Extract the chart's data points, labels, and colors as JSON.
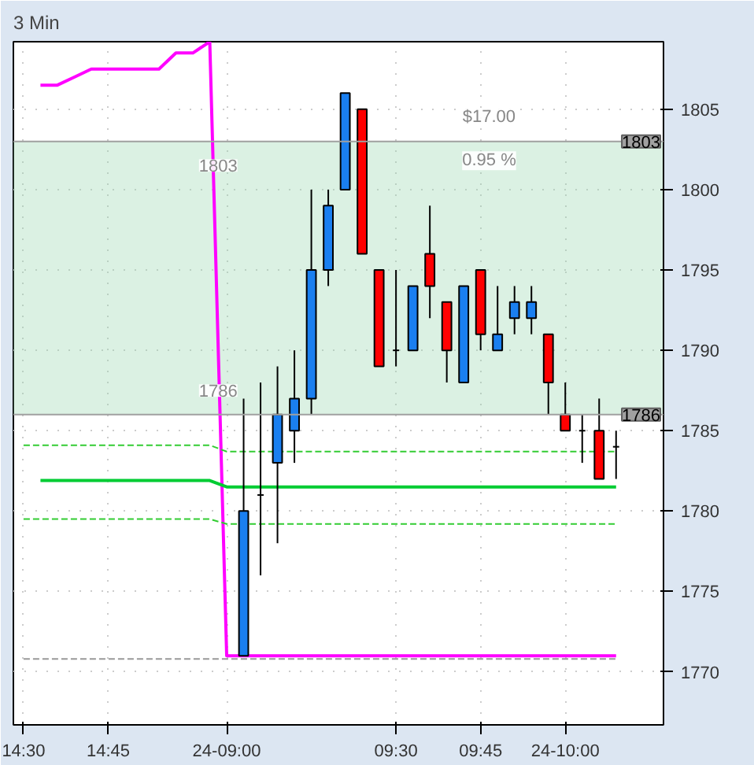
{
  "chart_data": {
    "type": "candlestick",
    "title": "3 Min",
    "categories": [
      "14:30",
      null,
      null,
      null,
      null,
      "14:45",
      null,
      null,
      null,
      null,
      null,
      null,
      "24-09:00",
      null,
      null,
      null,
      null,
      null,
      null,
      null,
      null,
      null,
      "09:30",
      null,
      null,
      null,
      null,
      "09:45",
      null,
      null,
      null,
      null,
      "24-10:00",
      null,
      null,
      null
    ],
    "ohlc": [
      null,
      null,
      null,
      null,
      null,
      null,
      null,
      null,
      null,
      null,
      null,
      null,
      null,
      [
        1771,
        1787,
        1771,
        1780
      ],
      [
        1781,
        1788,
        1776,
        1781
      ],
      [
        1783,
        1789,
        1778,
        1786
      ],
      [
        1785,
        1790,
        1783,
        1787
      ],
      [
        1787,
        1800,
        1786,
        1795
      ],
      [
        1795,
        1800,
        1794,
        1799
      ],
      [
        1800,
        1806,
        1800,
        1806
      ],
      [
        1805,
        1805,
        1796,
        1796
      ],
      [
        1795,
        1795,
        1789,
        1789
      ],
      [
        1790,
        1795,
        1789,
        1790
      ],
      [
        1790,
        1794,
        1790,
        1794
      ],
      [
        1796,
        1799,
        1792,
        1794
      ],
      [
        1793,
        1793,
        1788,
        1790
      ],
      [
        1788,
        1794,
        1788,
        1794
      ],
      [
        1795,
        1795,
        1790,
        1791
      ],
      [
        1790,
        1794,
        1790,
        1791
      ],
      [
        1792,
        1794,
        1791,
        1793
      ],
      [
        1792,
        1794,
        1791,
        1793
      ],
      [
        1791,
        1791,
        1786,
        1788
      ],
      [
        1786,
        1788,
        1785,
        1785
      ],
      [
        1785,
        1786,
        1783,
        1785
      ],
      [
        1785,
        1787,
        1782,
        1782
      ],
      [
        1784,
        1785,
        1782,
        1784
      ]
    ],
    "colors": [
      null,
      null,
      null,
      null,
      null,
      null,
      null,
      null,
      null,
      null,
      null,
      null,
      null,
      "#1a7ff0",
      "#000000",
      "#1a7ff0",
      "#1a7ff0",
      "#1a7ff0",
      "#1a7ff0",
      "#1a7ff0",
      "#ff0000",
      "#ff0000",
      "#000000",
      "#1a7ff0",
      "#ff0000",
      "#ff0000",
      "#1a7ff0",
      "#ff0000",
      "#1a7ff0",
      "#1a7ff0",
      "#1a7ff0",
      "#ff0000",
      "#ff0000",
      "#000000",
      "#ff0000",
      "#000000"
    ],
    "series": [
      {
        "type": "line",
        "color": "#ff00ff",
        "line_style": "solid",
        "values": [
          null,
          1806.5,
          1806.5,
          1807,
          1807.5,
          1807.5,
          1807.5,
          1807.5,
          1807.5,
          1808.5,
          1808.5,
          1809.2,
          1771,
          1771,
          1771,
          1771,
          1771,
          1771,
          1771,
          1771,
          1771,
          1771,
          1771,
          1771,
          1771,
          1771,
          1771,
          1771,
          1771,
          1771,
          1771,
          1771,
          1771,
          1771,
          1771,
          1771
        ]
      },
      {
        "type": "line",
        "color": "#00cc33",
        "line_style": "solid",
        "values": [
          null,
          1781.9,
          1781.9,
          1781.9,
          1781.9,
          1781.9,
          1781.9,
          1781.9,
          1781.9,
          1781.9,
          1781.9,
          1781.9,
          1781.5,
          1781.5,
          1781.5,
          1781.5,
          1781.5,
          1781.5,
          1781.5,
          1781.5,
          1781.5,
          1781.5,
          1781.5,
          1781.5,
          1781.5,
          1781.5,
          1781.5,
          1781.5,
          1781.5,
          1781.5,
          1781.5,
          1781.5,
          1781.5,
          1781.5,
          1781.5,
          1781.5
        ]
      },
      {
        "type": "line",
        "color": "#33cc33",
        "line_style": "dashed",
        "values": [
          1784.1,
          1784.1,
          1784.1,
          1784.1,
          1784.1,
          1784.1,
          1784.1,
          1784.1,
          1784.1,
          1784.1,
          1784.1,
          1784.1,
          1783.7,
          1783.7,
          1783.7,
          1783.7,
          1783.7,
          1783.7,
          1783.7,
          1783.7,
          1783.7,
          1783.7,
          1783.7,
          1783.7,
          1783.7,
          1783.7,
          1783.7,
          1783.7,
          1783.7,
          1783.7,
          1783.7,
          1783.7,
          1783.7,
          1783.7,
          1783.7,
          1783.7
        ]
      },
      {
        "type": "line",
        "color": "#33cc33",
        "line_style": "dashed",
        "values": [
          1779.5,
          1779.5,
          1779.5,
          1779.5,
          1779.5,
          1779.5,
          1779.5,
          1779.5,
          1779.5,
          1779.5,
          1779.5,
          1779.5,
          1779.2,
          1779.2,
          1779.2,
          1779.2,
          1779.2,
          1779.2,
          1779.2,
          1779.2,
          1779.2,
          1779.2,
          1779.2,
          1779.2,
          1779.2,
          1779.2,
          1779.2,
          1779.2,
          1779.2,
          1779.2,
          1779.2,
          1779.2,
          1779.2,
          1779.2,
          1779.2,
          1779.2
        ]
      },
      {
        "type": "line",
        "color": "#999999",
        "line_style": "dashed",
        "values": [
          1770.8,
          1770.8,
          1770.8,
          1770.8,
          1770.8,
          1770.8,
          1770.8,
          1770.8,
          1770.8,
          1770.8,
          1770.8,
          1770.8,
          1770.8,
          1770.8,
          1770.8,
          1770.8,
          1770.8,
          1770.8,
          1770.8,
          1770.8,
          1770.8,
          1770.8,
          1770.8,
          1770.8,
          1770.8,
          1770.8,
          1770.8,
          1770.8,
          1770.8,
          1770.8,
          1770.8,
          1770.8,
          1770.8,
          1770.8,
          1770.8,
          1770.8
        ]
      }
    ],
    "bands": [
      {
        "axis": "y",
        "from": 1786,
        "to": 1803,
        "color": "#99d6b0"
      }
    ],
    "ref_lines": [
      {
        "axis": "y",
        "value": 1803,
        "label": "1803",
        "color": "#a0a0a0"
      },
      {
        "axis": "y",
        "value": 1786,
        "label": "1786",
        "color": "#a0a0a0"
      }
    ],
    "annotations": [
      "$17.00",
      "0.95 %",
      "1803",
      "1786"
    ],
    "ylim": [
      1766.7,
      1809.2
    ],
    "yticks": [
      1770,
      1775,
      1780,
      1785,
      1790,
      1795,
      1800,
      1805
    ],
    "grid": true
  }
}
